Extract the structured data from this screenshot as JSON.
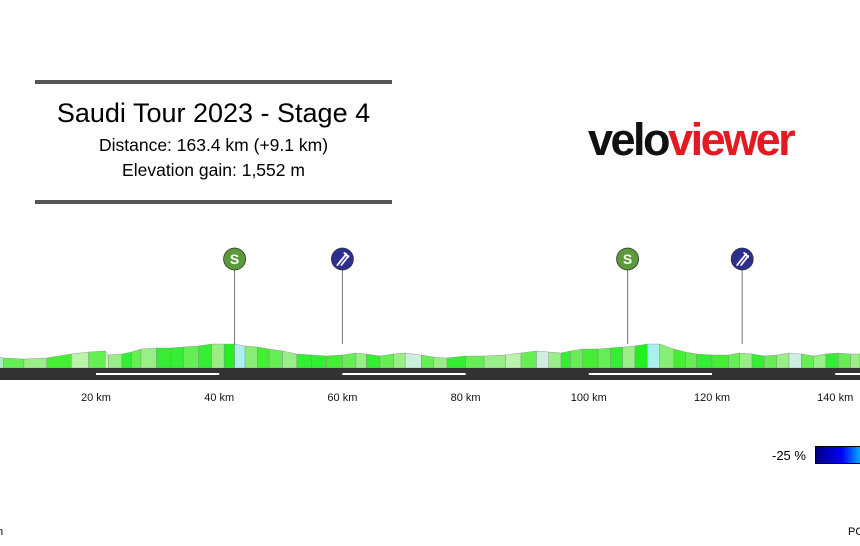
{
  "header": {
    "title": "Saudi Tour 2023 - Stage 4",
    "distance": "Distance: 163.4 km (+9.1 km)",
    "elevation": "Elevation gain: 1,552 m"
  },
  "logo": {
    "part1": "velo",
    "part2": "viewer",
    "brand_color": "#e21b23"
  },
  "chart_data": {
    "type": "area",
    "title": "Saudi Tour 2023 - Stage 4",
    "x_unit": "km",
    "xlim": [
      -15.5,
      144
    ],
    "x_ticks": [
      {
        "value": 20,
        "label": "20 km"
      },
      {
        "value": 40,
        "label": "40 km"
      },
      {
        "value": 60,
        "label": "60 km"
      },
      {
        "value": 80,
        "label": "80 km"
      },
      {
        "value": 100,
        "label": "100 km"
      },
      {
        "value": 120,
        "label": "120 km"
      },
      {
        "value": 140,
        "label": "140 km"
      }
    ],
    "profile": [
      {
        "km": -15.5,
        "h": 12
      },
      {
        "km": -13.6,
        "h": 14
      },
      {
        "km": -11.5,
        "h": 9
      },
      {
        "km": -10.0,
        "h": 12
      },
      {
        "km": -7.7,
        "h": 10
      },
      {
        "km": -4.0,
        "h": 11
      },
      {
        "km": -2.0,
        "h": 14
      },
      {
        "km": 0.8,
        "h": 10
      },
      {
        "km": 3.0,
        "h": 12
      },
      {
        "km": 5.0,
        "h": 10
      },
      {
        "km": 8.3,
        "h": 9
      },
      {
        "km": 12.0,
        "h": 10
      },
      {
        "km": 16.0,
        "h": 14
      },
      {
        "km": 18.8,
        "h": 16
      },
      {
        "km": 21.5,
        "h": 17
      },
      {
        "km": 22.0,
        "h": 13
      },
      {
        "km": 24.2,
        "h": 14
      },
      {
        "km": 25.8,
        "h": 16
      },
      {
        "km": 27.3,
        "h": 19
      },
      {
        "km": 29.8,
        "h": 20
      },
      {
        "km": 32.2,
        "h": 20
      },
      {
        "km": 34.2,
        "h": 21
      },
      {
        "km": 36.6,
        "h": 22
      },
      {
        "km": 38.8,
        "h": 24
      },
      {
        "km": 40.8,
        "h": 24
      },
      {
        "km": 42.5,
        "h": 24
      },
      {
        "km": 44.2,
        "h": 22
      },
      {
        "km": 46.2,
        "h": 21
      },
      {
        "km": 48.1,
        "h": 19
      },
      {
        "km": 50.3,
        "h": 17
      },
      {
        "km": 52.6,
        "h": 14
      },
      {
        "km": 55.0,
        "h": 13
      },
      {
        "km": 57.4,
        "h": 12
      },
      {
        "km": 60.0,
        "h": 13
      },
      {
        "km": 62.2,
        "h": 15
      },
      {
        "km": 63.9,
        "h": 14
      },
      {
        "km": 66.1,
        "h": 12
      },
      {
        "km": 68.3,
        "h": 14
      },
      {
        "km": 70.2,
        "h": 15
      },
      {
        "km": 72.8,
        "h": 13
      },
      {
        "km": 74.8,
        "h": 11
      },
      {
        "km": 77.0,
        "h": 10
      },
      {
        "km": 80.0,
        "h": 12
      },
      {
        "km": 83.0,
        "h": 12
      },
      {
        "km": 86.5,
        "h": 13
      },
      {
        "km": 89.0,
        "h": 15
      },
      {
        "km": 91.5,
        "h": 17
      },
      {
        "km": 93.5,
        "h": 16
      },
      {
        "km": 95.5,
        "h": 15
      },
      {
        "km": 97.0,
        "h": 17
      },
      {
        "km": 99.0,
        "h": 19
      },
      {
        "km": 101.5,
        "h": 19
      },
      {
        "km": 103.5,
        "h": 20
      },
      {
        "km": 105.5,
        "h": 21
      },
      {
        "km": 107.5,
        "h": 22
      },
      {
        "km": 109.5,
        "h": 24
      },
      {
        "km": 111.5,
        "h": 24
      },
      {
        "km": 113.8,
        "h": 19
      },
      {
        "km": 115.7,
        "h": 16
      },
      {
        "km": 117.5,
        "h": 14
      },
      {
        "km": 120.0,
        "h": 13
      },
      {
        "km": 122.7,
        "h": 13
      },
      {
        "km": 124.5,
        "h": 15
      },
      {
        "km": 126.5,
        "h": 14
      },
      {
        "km": 128.5,
        "h": 12
      },
      {
        "km": 130.5,
        "h": 13
      },
      {
        "km": 132.5,
        "h": 15
      },
      {
        "km": 134.5,
        "h": 14
      },
      {
        "km": 136.5,
        "h": 12
      },
      {
        "km": 138.5,
        "h": 14
      },
      {
        "km": 140.5,
        "h": 15
      },
      {
        "km": 142.5,
        "h": 14
      },
      {
        "km": 144.0,
        "h": 14
      }
    ],
    "segment_colors": [
      "#66ee55",
      "#bbf5aa",
      "#99ee88",
      "#66ee55",
      "#ccf0dd",
      "#99ee88",
      "#33ee33",
      "#66ee55",
      "#aaeebb",
      "#66ee55",
      "#99ee88",
      "#44ee33",
      "#bbf5aa",
      "#66ee55",
      "#ccf5bb",
      "#99ee88",
      "#33ee33",
      "#66ee55",
      "#99ee88",
      "#33ee33",
      "#33ee33",
      "#66ee55",
      "#33ee33",
      "#99ee88",
      "#22ee22",
      "#aaf0ee",
      "#88ee77",
      "#44ee33",
      "#66ee55",
      "#99ee88",
      "#33ee33",
      "#33ee33",
      "#44ee33",
      "#66ee55",
      "#99ee88",
      "#33ee33",
      "#66ee55",
      "#99ee88",
      "#ccf0dd",
      "#66ee55",
      "#99ee88",
      "#33ee33",
      "#66ee55",
      "#99ee88",
      "#bbf5aa",
      "#66ee55",
      "#ccf0dd",
      "#99ee88",
      "#33ee33",
      "#66ee55",
      "#44ee33",
      "#66ee55",
      "#33ee33",
      "#99ee88",
      "#22ee22",
      "#aaf0ee",
      "#88ee77",
      "#44ee33",
      "#66ee55",
      "#33ee33",
      "#44ee33",
      "#66ee55",
      "#99ee88",
      "#33ee33",
      "#66ee55",
      "#99ee88",
      "#ccf0dd",
      "#66ee55",
      "#99ee88",
      "#33ee33",
      "#66ee55",
      "#99ee88"
    ],
    "markers": [
      {
        "km": 42.5,
        "type": "sprint",
        "symbol": "S",
        "color": "#5a9a3a"
      },
      {
        "km": 60.0,
        "type": "feed",
        "symbol": "feed-icon",
        "color": "#2b2f8f"
      },
      {
        "km": 106.3,
        "type": "sprint",
        "symbol": "S",
        "color": "#5a9a3a"
      },
      {
        "km": 124.9,
        "type": "feed",
        "symbol": "feed-icon",
        "color": "#2b2f8f"
      }
    ],
    "axis_color": "#333333"
  },
  "legend": {
    "min_label": "-25 %"
  },
  "footer": {
    "left": "n",
    "right": "PC"
  }
}
